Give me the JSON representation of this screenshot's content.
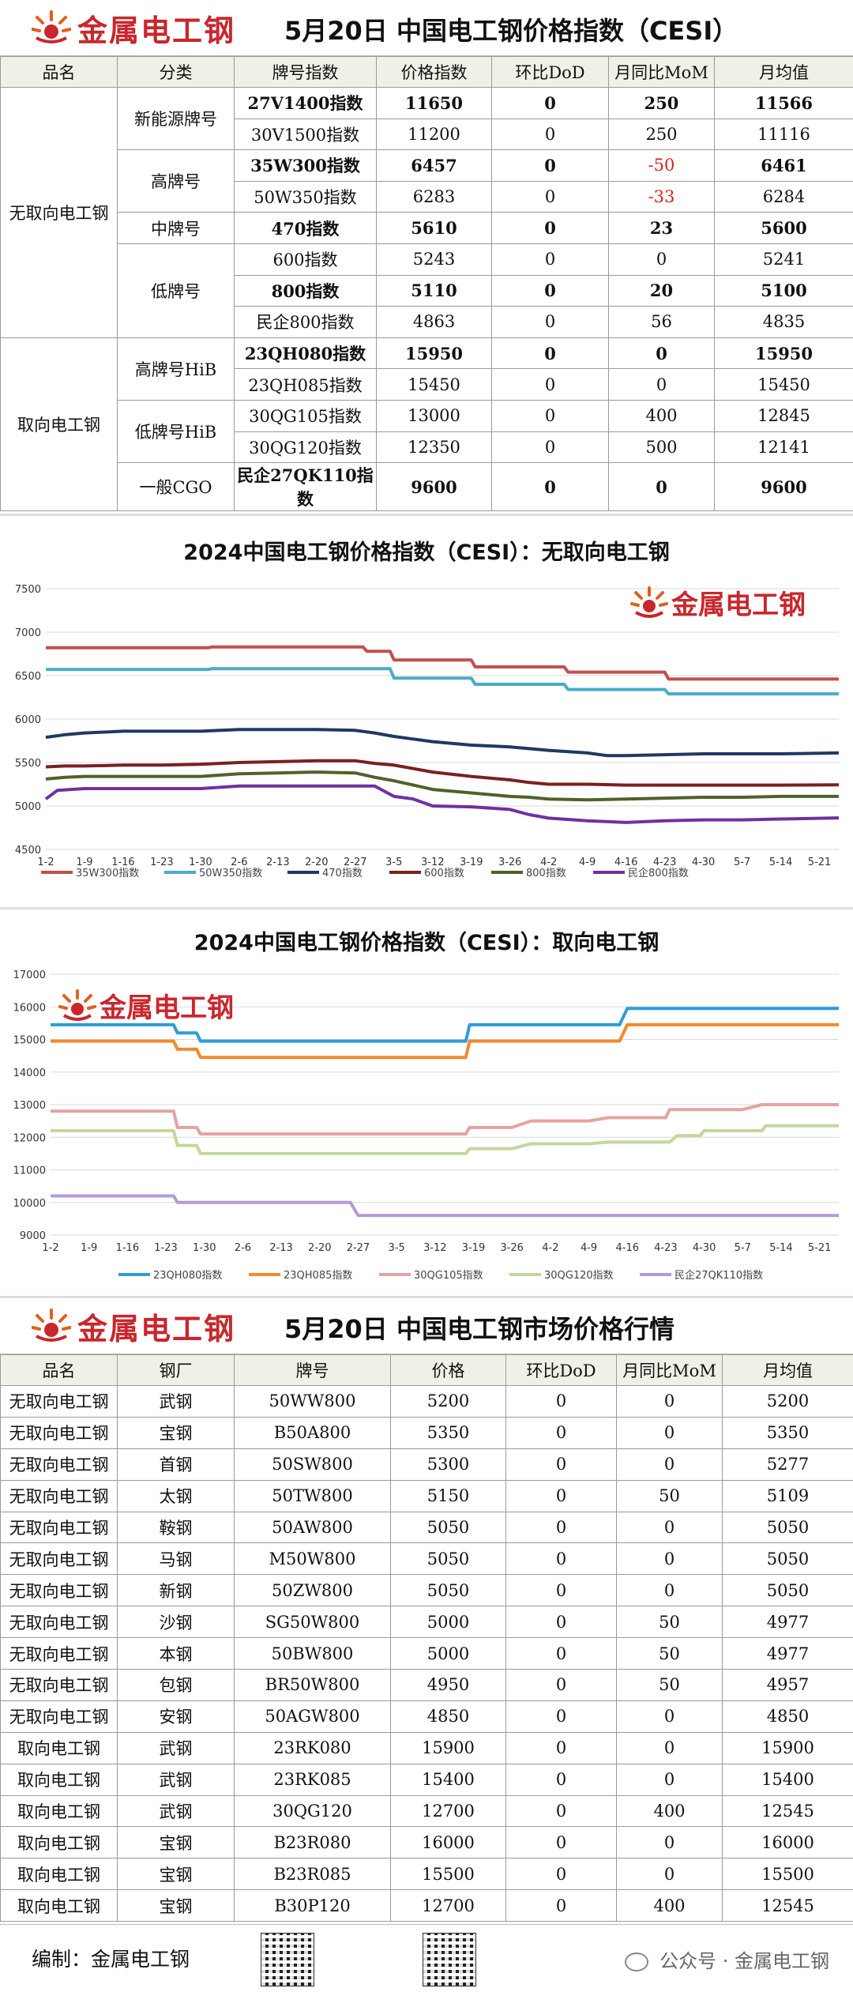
{
  "brand": "金属电工钢",
  "top": {
    "title": "5月20日  中国电工钢价格指数（CESI）",
    "headers": [
      "品名",
      "分类",
      "牌号指数",
      "价格指数",
      "环比DoD",
      "月同比MoM",
      "月均值"
    ],
    "groups": {
      "no": "无取向电工钢",
      "go": "取向电工钢",
      "new_energy": "新能源牌号",
      "high": "高牌号",
      "mid": "中牌号",
      "low": "低牌号",
      "high_hib": "高牌号HiB",
      "low_hib": "低牌号HiB",
      "cgo": "一般CGO"
    },
    "rows": [
      [
        "27V1400指数",
        "11650",
        "0",
        "250",
        "11566"
      ],
      [
        "30V1500指数",
        "11200",
        "0",
        "250",
        "11116"
      ],
      [
        "35W300指数",
        "6457",
        "0",
        "-50",
        "6461"
      ],
      [
        "50W350指数",
        "6283",
        "0",
        "-33",
        "6284"
      ],
      [
        "470指数",
        "5610",
        "0",
        "23",
        "5600"
      ],
      [
        "600指数",
        "5243",
        "0",
        "0",
        "5241"
      ],
      [
        "800指数",
        "5110",
        "0",
        "20",
        "5100"
      ],
      [
        "民企800指数",
        "4863",
        "0",
        "56",
        "4835"
      ],
      [
        "23QH080指数",
        "15950",
        "0",
        "0",
        "15950"
      ],
      [
        "23QH085指数",
        "15450",
        "0",
        "0",
        "15450"
      ],
      [
        "30QG105指数",
        "13000",
        "0",
        "400",
        "12845"
      ],
      [
        "30QG120指数",
        "12350",
        "0",
        "500",
        "12141"
      ],
      [
        "民企27QK110指数",
        "9600",
        "0",
        "0",
        "9600"
      ]
    ]
  },
  "chart1": {
    "title": "2024中国电工钢价格指数（CESI）：无取向电工钢"
  },
  "chart2": {
    "title": "2024中国电工钢价格指数（CESI）：取向电工钢"
  },
  "chart_data": [
    {
      "type": "line",
      "title": "2024中国电工钢价格指数（CESI）：无取向电工钢",
      "ylim": [
        4500,
        7500
      ],
      "yticks": [
        4500,
        5000,
        5500,
        6000,
        6500,
        7000,
        7500
      ],
      "xlim": [
        0,
        20
      ],
      "x_ticks": [
        "1-2",
        "1-9",
        "1-16",
        "1-23",
        "1-30",
        "2-6",
        "2-13",
        "2-20",
        "2-27",
        "3-5",
        "3-12",
        "3-19",
        "3-26",
        "4-2",
        "4-9",
        "4-16",
        "4-23",
        "4-30",
        "5-7",
        "5-14",
        "5-21"
      ],
      "series": [
        {
          "name": "35W300指数",
          "color": "#c0504d",
          "x": [
            0,
            4.2,
            4.3,
            8.2,
            8.3,
            8.9,
            9,
            11,
            11.1,
            13.4,
            13.5,
            16,
            16.1,
            20.5
          ],
          "y": [
            6820,
            6820,
            6830,
            6830,
            6780,
            6780,
            6680,
            6680,
            6600,
            6600,
            6540,
            6540,
            6460,
            6460
          ]
        },
        {
          "name": "50W350指数",
          "color": "#4bacc6",
          "x": [
            0,
            4.2,
            4.3,
            8.9,
            9,
            11,
            11.1,
            13.4,
            13.5,
            16,
            16.1,
            20.5
          ],
          "y": [
            6570,
            6570,
            6580,
            6580,
            6470,
            6470,
            6400,
            6400,
            6340,
            6340,
            6290,
            6290
          ]
        },
        {
          "name": "470指数",
          "color": "#1f3864",
          "x": [
            0,
            0.5,
            1,
            2,
            3,
            4,
            5,
            6,
            7,
            8,
            8.5,
            9,
            9.5,
            10,
            11,
            12,
            13,
            14,
            14.5,
            15,
            16,
            17,
            18,
            19,
            20.5
          ],
          "y": [
            5790,
            5820,
            5840,
            5860,
            5860,
            5860,
            5880,
            5880,
            5880,
            5870,
            5840,
            5800,
            5770,
            5740,
            5700,
            5680,
            5640,
            5610,
            5580,
            5580,
            5590,
            5600,
            5600,
            5600,
            5610
          ]
        },
        {
          "name": "600指数",
          "color": "#7b1f1f",
          "x": [
            0,
            0.5,
            1,
            2,
            3,
            4,
            5,
            6,
            7,
            8,
            8.5,
            9,
            9.5,
            10,
            11,
            12,
            12.5,
            13,
            14,
            15,
            16,
            17,
            18,
            19,
            20.5
          ],
          "y": [
            5450,
            5460,
            5460,
            5470,
            5470,
            5480,
            5500,
            5510,
            5520,
            5520,
            5490,
            5470,
            5430,
            5390,
            5340,
            5300,
            5270,
            5250,
            5250,
            5240,
            5240,
            5240,
            5240,
            5240,
            5243
          ]
        },
        {
          "name": "800指数",
          "color": "#4f6228",
          "x": [
            0,
            0.5,
            1,
            2,
            3,
            4,
            5,
            6,
            7,
            8,
            8.5,
            9,
            9.5,
            10,
            11,
            12,
            12.5,
            13,
            14,
            15,
            16,
            17,
            18,
            19,
            20.5
          ],
          "y": [
            5310,
            5330,
            5340,
            5340,
            5340,
            5340,
            5370,
            5380,
            5390,
            5380,
            5330,
            5290,
            5240,
            5190,
            5150,
            5110,
            5100,
            5080,
            5070,
            5080,
            5090,
            5100,
            5100,
            5110,
            5110
          ]
        },
        {
          "name": "民企800指数",
          "color": "#7030a0",
          "x": [
            0,
            0.3,
            1,
            2,
            3,
            4,
            5,
            6,
            7,
            8,
            8.5,
            9,
            9.5,
            10,
            11,
            12,
            12.5,
            13,
            14,
            15,
            16,
            17,
            18,
            19,
            20.5
          ],
          "y": [
            5080,
            5180,
            5200,
            5200,
            5200,
            5200,
            5230,
            5230,
            5230,
            5230,
            5230,
            5110,
            5080,
            5000,
            4990,
            4960,
            4900,
            4860,
            4830,
            4810,
            4830,
            4840,
            4840,
            4850,
            4863
          ]
        }
      ]
    },
    {
      "type": "line",
      "title": "2024中国电工钢价格指数（CESI）：取向电工钢",
      "ylim": [
        9000,
        17000
      ],
      "yticks": [
        9000,
        10000,
        11000,
        12000,
        13000,
        14000,
        15000,
        16000,
        17000
      ],
      "xlim": [
        0,
        20
      ],
      "x_ticks": [
        "1-2",
        "1-9",
        "1-16",
        "1-23",
        "1-30",
        "2-6",
        "2-13",
        "2-20",
        "2-27",
        "3-5",
        "3-12",
        "3-19",
        "3-26",
        "4-2",
        "4-9",
        "4-16",
        "4-23",
        "4-30",
        "5-7",
        "5-14",
        "5-21"
      ],
      "series": [
        {
          "name": "23QH080指数",
          "color": "#2e9cd8",
          "x": [
            0,
            3.2,
            3.3,
            3.8,
            3.9,
            10.8,
            10.9,
            14.8,
            15,
            20.5
          ],
          "y": [
            15450,
            15450,
            15200,
            15200,
            14950,
            14950,
            15450,
            15450,
            15950,
            15950
          ]
        },
        {
          "name": "23QH085指数",
          "color": "#f28a2d",
          "x": [
            0,
            3.2,
            3.3,
            3.8,
            3.9,
            10.8,
            10.9,
            14.8,
            15,
            20.5
          ],
          "y": [
            14950,
            14950,
            14700,
            14700,
            14450,
            14450,
            14950,
            14950,
            15450,
            15450
          ]
        },
        {
          "name": "30QG105指数",
          "color": "#e3a3a3",
          "x": [
            0,
            3.2,
            3.3,
            3.8,
            3.9,
            10.8,
            10.9,
            12,
            12.5,
            14,
            14.5,
            16,
            16.1,
            18,
            18.5,
            20.5
          ],
          "y": [
            12800,
            12800,
            12300,
            12300,
            12100,
            12100,
            12300,
            12300,
            12500,
            12500,
            12600,
            12600,
            12850,
            12850,
            13000,
            13000
          ]
        },
        {
          "name": "30QG120指数",
          "color": "#c4d79b",
          "x": [
            0,
            3.2,
            3.3,
            3.8,
            3.9,
            10.8,
            10.9,
            12,
            12.5,
            14,
            14.5,
            16.1,
            16.3,
            16.9,
            17,
            18.5,
            18.6,
            20.5
          ],
          "y": [
            12200,
            12200,
            11750,
            11750,
            11500,
            11500,
            11650,
            11650,
            11800,
            11800,
            11850,
            11850,
            12050,
            12050,
            12200,
            12200,
            12350,
            12350
          ]
        },
        {
          "name": "民企27QK110指数",
          "color": "#b29bd6",
          "x": [
            0,
            3.2,
            3.3,
            7.8,
            8,
            20.5
          ],
          "y": [
            10200,
            10200,
            10000,
            10000,
            9600,
            9600
          ]
        }
      ]
    }
  ],
  "bottom": {
    "title": "5月20日  中国电工钢市场价格行情",
    "headers": [
      "品名",
      "钢厂",
      "牌号",
      "价格",
      "环比DoD",
      "月同比MoM",
      "月均值"
    ],
    "rows": [
      [
        "无取向电工钢",
        "武钢",
        "50WW800",
        "5200",
        "0",
        "0",
        "5200"
      ],
      [
        "无取向电工钢",
        "宝钢",
        "B50A800",
        "5350",
        "0",
        "0",
        "5350"
      ],
      [
        "无取向电工钢",
        "首钢",
        "50SW800",
        "5300",
        "0",
        "0",
        "5277"
      ],
      [
        "无取向电工钢",
        "太钢",
        "50TW800",
        "5150",
        "0",
        "50",
        "5109"
      ],
      [
        "无取向电工钢",
        "鞍钢",
        "50AW800",
        "5050",
        "0",
        "0",
        "5050"
      ],
      [
        "无取向电工钢",
        "马钢",
        "M50W800",
        "5050",
        "0",
        "0",
        "5050"
      ],
      [
        "无取向电工钢",
        "新钢",
        "50ZW800",
        "5050",
        "0",
        "0",
        "5050"
      ],
      [
        "无取向电工钢",
        "沙钢",
        "SG50W800",
        "5000",
        "0",
        "50",
        "4977"
      ],
      [
        "无取向电工钢",
        "本钢",
        "50BW800",
        "5000",
        "0",
        "50",
        "4977"
      ],
      [
        "无取向电工钢",
        "包钢",
        "BR50W800",
        "4950",
        "0",
        "50",
        "4957"
      ],
      [
        "无取向电工钢",
        "安钢",
        "50AGW800",
        "4850",
        "0",
        "0",
        "4850"
      ],
      [
        "取向电工钢",
        "武钢",
        "23RK080",
        "15900",
        "0",
        "0",
        "15900"
      ],
      [
        "取向电工钢",
        "武钢",
        "23RK085",
        "15400",
        "0",
        "0",
        "15400"
      ],
      [
        "取向电工钢",
        "武钢",
        "30QG120",
        "12700",
        "0",
        "400",
        "12545"
      ],
      [
        "取向电工钢",
        "宝钢",
        "B23R080",
        "16000",
        "0",
        "0",
        "16000"
      ],
      [
        "取向电工钢",
        "宝钢",
        "B23R085",
        "15500",
        "0",
        "0",
        "15500"
      ],
      [
        "取向电工钢",
        "宝钢",
        "B30P120",
        "12700",
        "0",
        "400",
        "12545"
      ]
    ]
  },
  "footer": {
    "editor": "编制：金属电工钢",
    "wechat": "公众号 · 金属电工钢"
  }
}
